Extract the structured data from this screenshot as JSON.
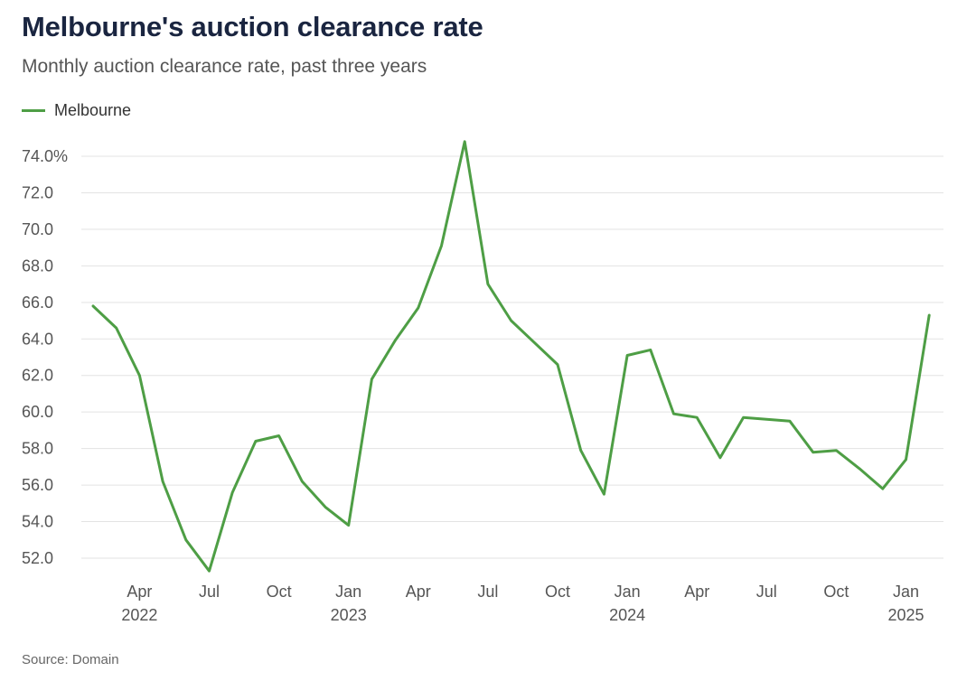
{
  "title": "Melbourne's auction clearance rate",
  "subtitle": "Monthly auction clearance rate, past three years",
  "source": "Source: Domain",
  "colors": {
    "series": "#4e9e45",
    "grid": "#e3e3e3",
    "title": "#1a2540"
  },
  "chart_data": {
    "type": "line",
    "grid": true,
    "legend_position": "top-left",
    "yunit": "%",
    "ylim": [
      51,
      75
    ],
    "yticks": [
      52,
      54,
      56,
      58,
      60,
      62,
      64,
      66,
      68,
      70,
      72,
      74
    ],
    "ytick_labels": [
      "52.0",
      "54.0",
      "56.0",
      "58.0",
      "60.0",
      "62.0",
      "64.0",
      "66.0",
      "68.0",
      "70.0",
      "72.0",
      "74.0%"
    ],
    "x": [
      "2022-02",
      "2022-03",
      "2022-04",
      "2022-05",
      "2022-06",
      "2022-07",
      "2022-08",
      "2022-09",
      "2022-10",
      "2022-11",
      "2022-12",
      "2023-01",
      "2023-02",
      "2023-03",
      "2023-04",
      "2023-05",
      "2023-06",
      "2023-07",
      "2023-08",
      "2023-09",
      "2023-10",
      "2023-11",
      "2023-12",
      "2024-01",
      "2024-02",
      "2024-03",
      "2024-04",
      "2024-05",
      "2024-06",
      "2024-07",
      "2024-08",
      "2024-09",
      "2024-10",
      "2024-11",
      "2024-12",
      "2025-01",
      "2025-02"
    ],
    "xticks": [
      {
        "x": "2022-04",
        "month": "Apr",
        "year": "2022"
      },
      {
        "x": "2022-07",
        "month": "Jul",
        "year": ""
      },
      {
        "x": "2022-10",
        "month": "Oct",
        "year": ""
      },
      {
        "x": "2023-01",
        "month": "Jan",
        "year": "2023"
      },
      {
        "x": "2023-04",
        "month": "Apr",
        "year": ""
      },
      {
        "x": "2023-07",
        "month": "Jul",
        "year": ""
      },
      {
        "x": "2023-10",
        "month": "Oct",
        "year": ""
      },
      {
        "x": "2024-01",
        "month": "Jan",
        "year": "2024"
      },
      {
        "x": "2024-04",
        "month": "Apr",
        "year": ""
      },
      {
        "x": "2024-07",
        "month": "Jul",
        "year": ""
      },
      {
        "x": "2024-10",
        "month": "Oct",
        "year": ""
      },
      {
        "x": "2025-01",
        "month": "Jan",
        "year": "2025"
      }
    ],
    "series": [
      {
        "name": "Melbourne",
        "color": "#4e9e45",
        "values": [
          65.8,
          64.6,
          62.0,
          56.2,
          53.0,
          51.3,
          55.6,
          58.4,
          58.7,
          56.2,
          54.8,
          53.8,
          61.8,
          63.9,
          65.7,
          69.1,
          74.8,
          67.0,
          65.0,
          63.8,
          62.6,
          57.9,
          55.5,
          63.1,
          63.4,
          59.9,
          59.7,
          57.5,
          59.7,
          59.6,
          59.5,
          57.8,
          57.9,
          56.9,
          55.8,
          57.4,
          65.3
        ]
      }
    ]
  }
}
